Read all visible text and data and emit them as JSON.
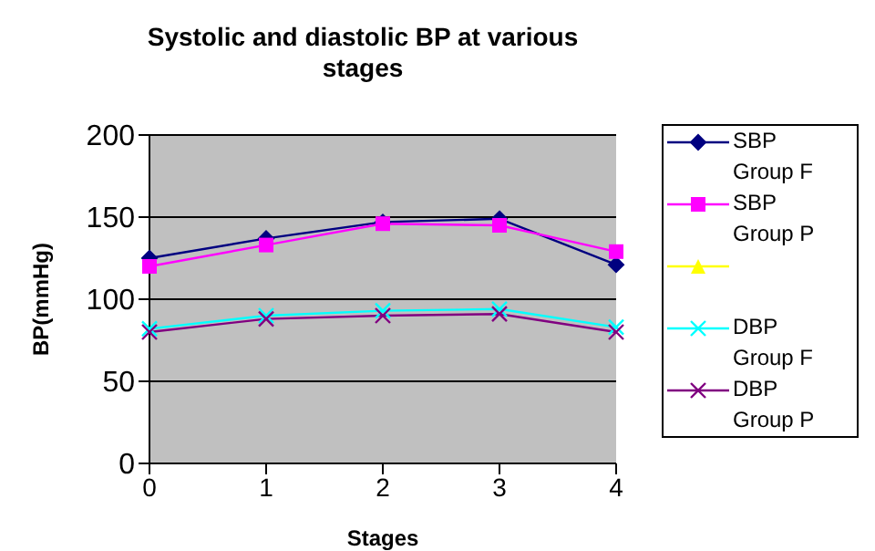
{
  "chart_data": {
    "type": "line",
    "title": "Systolic and diastolic BP at various stages",
    "xlabel": "Stages",
    "ylabel": "BP(mmHg)",
    "categories": [
      "0",
      "1",
      "2",
      "3",
      "4"
    ],
    "series": [
      {
        "name": "SBP Group F",
        "color": "#000080",
        "marker": "diamond",
        "values": [
          125,
          137,
          147,
          149,
          121
        ]
      },
      {
        "name": "SBP Group P",
        "color": "#ff00ff",
        "marker": "square",
        "values": [
          120,
          133,
          146,
          145,
          129
        ]
      },
      {
        "color": "#ffff00",
        "marker": "triangle",
        "values": [
          null,
          null,
          null,
          null,
          null
        ]
      },
      {
        "name": "DBP Group F",
        "color": "#00ffff",
        "marker": "cross",
        "values": [
          82,
          90,
          93,
          94,
          83
        ]
      },
      {
        "name": "DBP Group P",
        "color": "#800080",
        "marker": "cross",
        "values": [
          80,
          88,
          90,
          91,
          80
        ]
      }
    ],
    "ylim": [
      0,
      200
    ],
    "yticks": [
      0,
      50,
      100,
      150,
      200
    ],
    "grid": "y",
    "legend": "right"
  }
}
